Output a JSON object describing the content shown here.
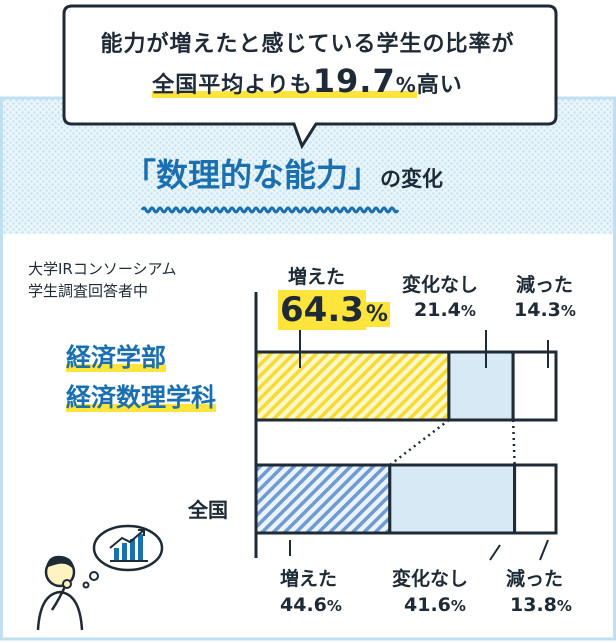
{
  "headline": {
    "line1": "能力が増えたと感じている学生の比率が",
    "line2_prefix": "全国平均よりも",
    "line2_number": "19.7",
    "line2_unit": "%",
    "line2_suffix": "高い"
  },
  "section_title": {
    "quote_open": "「",
    "main": "数理的な能力",
    "quote_close": "」",
    "suffix": "の変化"
  },
  "source": {
    "line1": "大学IRコンソーシアム",
    "line2": "学生調査回答者中"
  },
  "group_top": {
    "line1": "経済学部",
    "line2": "経済数理学科"
  },
  "group_bottom": {
    "label": "全国"
  },
  "labels_top": {
    "increase": "増えた",
    "increase_num": "64.3",
    "increase_unit": "%",
    "same": "変化なし",
    "same_num": "21.4",
    "same_unit": "%",
    "decrease": "減った",
    "decrease_num": "14.3",
    "decrease_unit": "%"
  },
  "labels_bottom": {
    "increase": "増えた",
    "increase_num": "44.6",
    "increase_unit": "%",
    "same": "変化なし",
    "same_num": "41.6",
    "same_unit": "%",
    "decrease": "減った",
    "decrease_num": "13.8",
    "decrease_unit": "%"
  },
  "colors": {
    "background_pattern": "#dff0f8",
    "increase_top": "#f7e23e",
    "increase_bottom": "#7fa7d6",
    "same": "#d6e9f4",
    "decrease": "#ffffff",
    "stroke": "#1e2a35",
    "accent_blue": "#1a6fb0",
    "highlight_yellow": "#ffe53b"
  },
  "chart_data": {
    "type": "bar",
    "orientation": "horizontal-stacked",
    "categories": [
      "経済学部 経済数理学科",
      "全国"
    ],
    "series": [
      {
        "name": "増えた",
        "values": [
          64.3,
          44.6
        ]
      },
      {
        "name": "変化なし",
        "values": [
          21.4,
          41.6
        ]
      },
      {
        "name": "減った",
        "values": [
          14.3,
          13.8
        ]
      }
    ],
    "xlim": [
      0,
      100
    ],
    "title": "「数理的な能力」の変化",
    "xlabel": "",
    "ylabel": ""
  }
}
